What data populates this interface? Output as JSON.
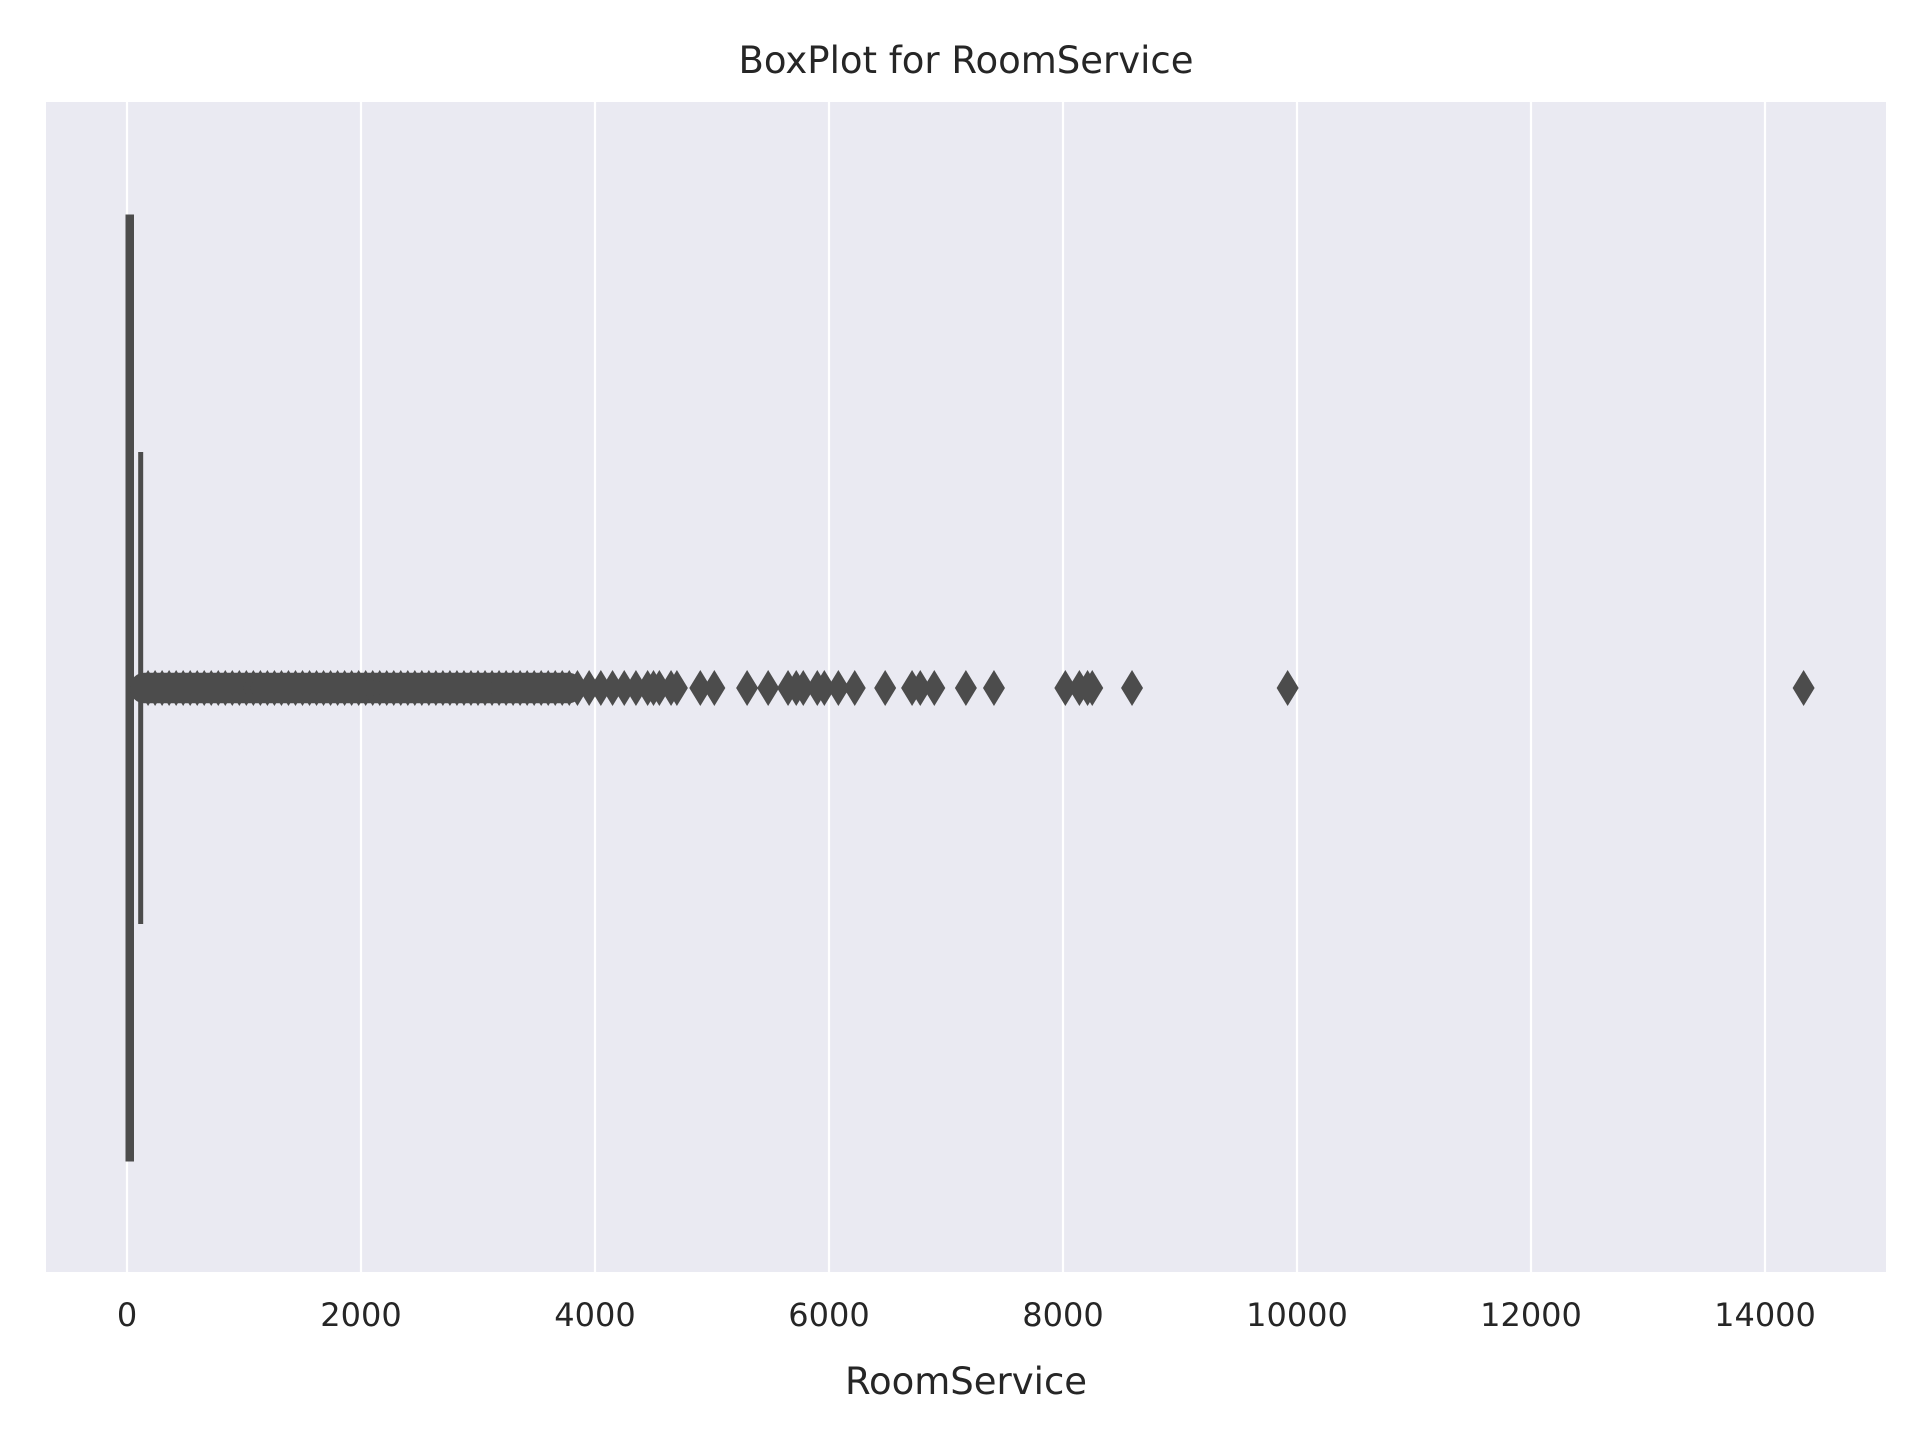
{
  "chart_data": {
    "type": "boxplot",
    "title": "BoxPlot for RoomService",
    "xlabel": "RoomService",
    "ylabel": "",
    "orientation": "horizontal",
    "xlim": [
      -700,
      15000
    ],
    "xticks": [
      0,
      2000,
      4000,
      6000,
      8000,
      10000,
      12000,
      14000
    ],
    "xtick_labels": [
      "0",
      "2000",
      "4000",
      "6000",
      "8000",
      "10000",
      "12000",
      "14000"
    ],
    "grid": true,
    "legend": "none",
    "box": {
      "q1": 0,
      "median": 0,
      "q3": 47,
      "whisker_low": 0,
      "whisker_high": 117
    },
    "outliers_dense_range": [
      120,
      3800
    ],
    "outliers": [
      3850,
      3950,
      4050,
      4150,
      4250,
      4350,
      4450,
      4500,
      4550,
      4650,
      4700,
      4900,
      5020,
      5300,
      5480,
      5650,
      5720,
      5780,
      5900,
      5960,
      6080,
      6220,
      6480,
      6710,
      6780,
      6900,
      7170,
      7410,
      8020,
      8140,
      8210,
      8250,
      8590,
      9920,
      14330
    ],
    "colors": {
      "background": "#eaeaf2",
      "grid": "#ffffff",
      "box": "#4c4c4c"
    }
  }
}
